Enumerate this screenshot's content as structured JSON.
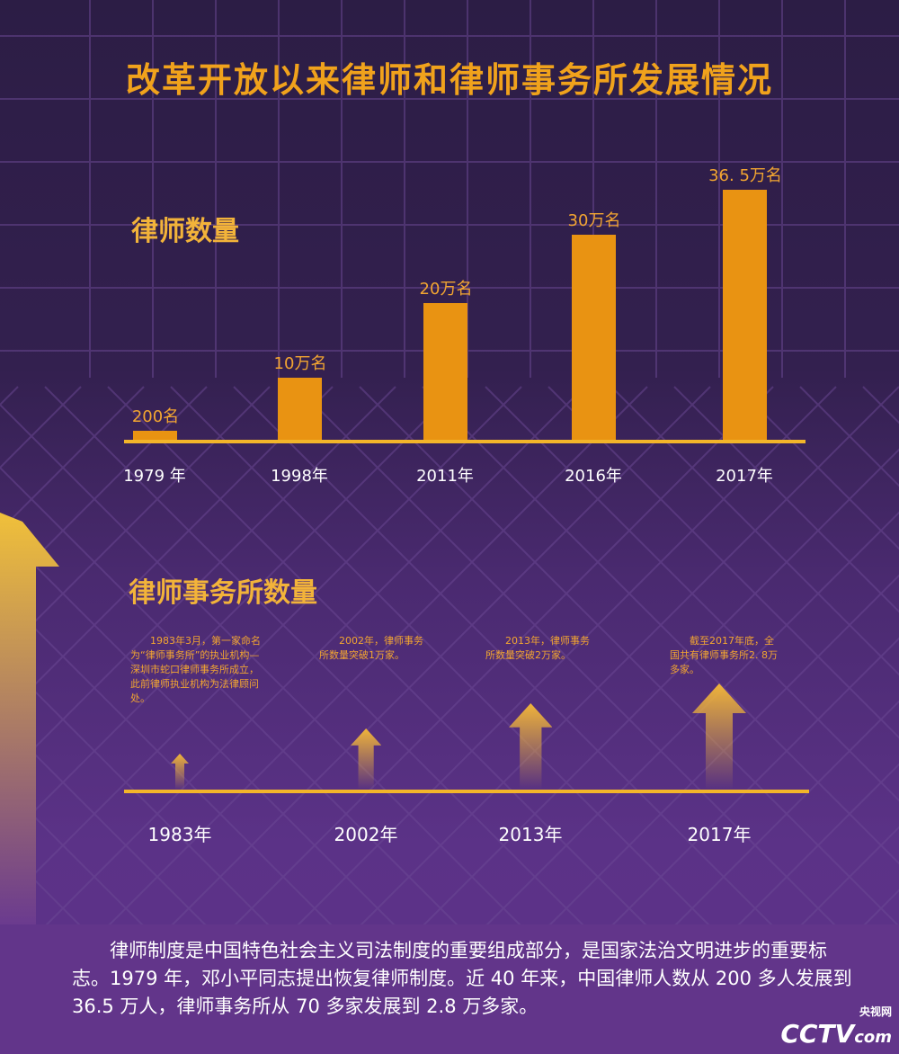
{
  "title": "改革开放以来律师和律师事务所发展情况",
  "chart_data": [
    {
      "type": "bar",
      "title": "律师数量",
      "categories": [
        "1979 年",
        "1998年",
        "2011年",
        "2016年",
        "2017年"
      ],
      "values": [
        0.02,
        10,
        20,
        30,
        36.5
      ],
      "unit": "万名",
      "labels": [
        "200名",
        "10万名",
        "20万名",
        "30万名",
        "36. 5万名"
      ]
    },
    {
      "type": "bar",
      "title": "律师事务所数量",
      "categories": [
        "1983年",
        "2002年",
        "2013年",
        "2017年"
      ],
      "values": [
        1,
        10000,
        20000,
        28000
      ],
      "notes": [
        "1983年3月，第一家命名为“律师事务所”的执业机构—深圳市蛇口律师事务所成立，此前律师执业机构为法律顾问处。",
        "2002年，律师事务所数量突破1万家。",
        "2013年，律师事务所数量突破2万家。",
        "截至2017年底，全国共有律师事务所2. 8万多家。"
      ]
    }
  ],
  "paragraph": "律师制度是中国特色社会主义司法制度的重要组成部分，是国家法治文明进步的重要标志。1979 年，邓小平同志提出恢复律师制度。近 40 年来，中国律师人数从 200 多人发展到 36.5 万人，律师事务所从 70 多家发展到 2.8 万多家。",
  "logo": {
    "name": "CCTV",
    "sub": "央视网",
    "suffix": "com"
  }
}
